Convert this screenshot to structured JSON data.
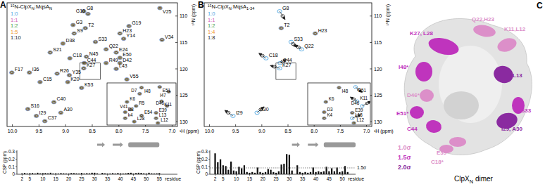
{
  "panel_labels": [
    "A",
    "B",
    "C"
  ],
  "chart_data": [
    {
      "type": "scatter",
      "title": [
        {
          "text": "¹⁵N-ClpX"
        },
        {
          "text": "N",
          "sub": true
        },
        {
          "text": ":MqsA"
        },
        {
          "text": "N",
          "sub": true
        }
      ],
      "xlabel": "¹H (ppm)",
      "ylabel": "¹⁵N (ppm)",
      "xlim": [
        10.1,
        6.9
      ],
      "ylim": [
        107.5,
        130.9
      ],
      "xticks": [
        {
          "value": 10,
          "label": "10.0"
        },
        9.5,
        {
          "value": 9,
          "label": "9.0"
        },
        8.5,
        {
          "value": 8,
          "label": "8.0"
        },
        7.5,
        {
          "value": 7,
          "label": "7.0"
        }
      ],
      "yticks": [
        110,
        115,
        120,
        125,
        130
      ],
      "series": [
        {
          "name": "1:0",
          "color": "#4aa3df"
        },
        {
          "name": "1:1",
          "color": "#d262b5"
        },
        {
          "name": "1:2",
          "color": "#3c9a3c"
        },
        {
          "name": "1:5",
          "color": "#f0962a"
        },
        {
          "name": "1:10",
          "color": "#222222"
        }
      ],
      "peaks": [
        {
          "label": "G8",
          "x": 8.66,
          "y": 109.1
        },
        {
          "label": "G10",
          "x": 8.58,
          "y": 109.6
        },
        {
          "label": "V25",
          "x": 7.23,
          "y": 108.5
        },
        {
          "label": "G3",
          "x": 8.86,
          "y": 111.7
        },
        {
          "label": "T2",
          "x": 8.63,
          "y": 112.3
        },
        {
          "label": "G19",
          "x": 7.81,
          "y": 111.9
        },
        {
          "label": "H23",
          "x": 7.98,
          "y": 113.3
        },
        {
          "label": "S9",
          "x": 8.84,
          "y": 113.3
        },
        {
          "label": "Y14",
          "x": 7.91,
          "y": 114.3
        },
        {
          "label": "V34",
          "x": 7.19,
          "y": 114.5
        },
        {
          "label": "D38",
          "x": 9.05,
          "y": 115.2
        },
        {
          "label": "S33",
          "x": 8.44,
          "y": 114.9
        },
        {
          "label": "Q22",
          "x": 8.24,
          "y": 116.3
        },
        {
          "label": "E24",
          "x": 8.05,
          "y": 116.9
        },
        {
          "label": "S21",
          "x": 9.29,
          "y": 116.9
        },
        {
          "label": "C18",
          "x": 8.92,
          "y": 118.0
        },
        {
          "label": "N45",
          "x": 8.61,
          "y": 117.7
        },
        {
          "label": "E50",
          "x": 7.98,
          "y": 117.9
        },
        {
          "label": "C44",
          "x": 8.65,
          "y": 118.9
        },
        {
          "label": "R49",
          "x": 8.24,
          "y": 118.9
        },
        {
          "label": "D42",
          "x": 7.98,
          "y": 118.9
        },
        {
          "label": "K27",
          "x": 8.66,
          "y": 119.9
        },
        {
          "label": "L43",
          "x": 8.05,
          "y": 120.0
        },
        {
          "label": "F17",
          "x": 10.01,
          "y": 120.7
        },
        {
          "label": "I36",
          "x": 9.68,
          "y": 120.7
        },
        {
          "label": "R26",
          "x": 9.16,
          "y": 120.9
        },
        {
          "label": "Y35",
          "x": 8.93,
          "y": 121.2
        },
        {
          "label": "K20",
          "x": 8.96,
          "y": 122.5
        },
        {
          "label": "C15",
          "x": 9.48,
          "y": 122.5
        },
        {
          "label": "K53",
          "x": 8.7,
          "y": 123.6
        },
        {
          "label": "V55",
          "x": 7.85,
          "y": 122.0
        },
        {
          "label": "C40",
          "x": 9.22,
          "y": 126.3
        },
        {
          "label": "S16",
          "x": 9.71,
          "y": 127.6
        },
        {
          "label": "A30",
          "x": 9.09,
          "y": 128.3
        },
        {
          "label": "I29",
          "x": 9.55,
          "y": 128.9
        },
        {
          "label": "C37",
          "x": 9.39,
          "y": 129.9
        }
      ],
      "inset": {
        "xlim": [
          8.73,
          8.35
        ],
        "ylim": [
          118.9,
          122.0
        ],
        "peaks": [
          {
            "label": "I48",
            "x": 8.54,
            "y": 119.25
          },
          {
            "label": "E51",
            "x": 8.44,
            "y": 119.2
          },
          {
            "label": "I47",
            "x": 8.39,
            "y": 119.55
          },
          {
            "label": "D7",
            "x": 8.55,
            "y": 119.7
          },
          {
            "label": "K6",
            "x": 8.62,
            "y": 120.3
          },
          {
            "label": "R5",
            "x": 8.57,
            "y": 120.6
          },
          {
            "label": "V41",
            "x": 8.6,
            "y": 120.85
          },
          {
            "label": "D3",
            "x": 8.63,
            "y": 121.05
          },
          {
            "label": "E54",
            "x": 8.54,
            "y": 121.3
          },
          {
            "label": "E39",
            "x": 8.46,
            "y": 121.1
          },
          {
            "label": "K11",
            "x": 8.43,
            "y": 120.25
          },
          {
            "label": "D46",
            "x": 8.4,
            "y": 120.6
          },
          {
            "label": "k4",
            "x": 8.63,
            "y": 121.5
          },
          {
            "label": "L28",
            "x": 8.58,
            "y": 121.75
          },
          {
            "label": "L13",
            "x": 8.46,
            "y": 121.5
          },
          {
            "label": "L12",
            "x": 8.45,
            "y": 121.85
          }
        ]
      }
    },
    {
      "type": "bar",
      "ylabel": "CSP (ppm)",
      "xlabel": "residue",
      "color": "#111111",
      "xlim": [
        0,
        62
      ],
      "ylim": [
        0,
        0.32
      ],
      "xticks": [
        2,
        5,
        10,
        15,
        20,
        25,
        30,
        35,
        40,
        45,
        50,
        55
      ],
      "yticks": [
        0,
        0.1,
        0.2,
        0.3
      ],
      "x": [
        2,
        3,
        4,
        5,
        6,
        7,
        8,
        9,
        10,
        11,
        12,
        13,
        14,
        15,
        16,
        17,
        18,
        19,
        20,
        21,
        22,
        23,
        24,
        25,
        26,
        27,
        28,
        29,
        30,
        31,
        32,
        33,
        34,
        35,
        36,
        37,
        38,
        39,
        40,
        41,
        42,
        43,
        44,
        45,
        46,
        47,
        48,
        49,
        50,
        51,
        52,
        53,
        54,
        55
      ],
      "values": [
        0.012,
        0.018,
        0.01,
        0.014,
        0.016,
        0.01,
        0.02,
        0.012,
        0.015,
        0.016,
        0.012,
        0.02,
        0.01,
        0.012,
        0.01,
        0.015,
        0.012,
        0.01,
        0.01,
        0.016,
        0.015,
        0.012,
        0.01,
        0.018,
        0.01,
        0.014,
        0.012,
        0.02,
        0.02,
        0.012,
        null,
        0.018,
        0.012,
        0.01,
        0.01,
        0.015,
        0.01,
        0.016,
        0.012,
        0.01,
        0.012,
        0.018,
        0.02,
        0.01,
        0.016,
        0.02,
        0.018,
        0.012,
        0.01,
        0.02,
        0.012,
        0.01,
        0.012,
        0.016
      ],
      "secondary_structure": [
        {
          "type": "strand",
          "start": 31,
          "end": 34
        },
        {
          "type": "strand",
          "start": 37,
          "end": 41
        },
        {
          "type": "helix",
          "start": 43,
          "end": 55
        }
      ]
    },
    {
      "type": "scatter",
      "title": [
        {
          "text": "¹⁵N-ClpX"
        },
        {
          "text": "N",
          "sub": true
        },
        {
          "text": ":MqsA"
        },
        {
          "text": "1-34",
          "sub": true
        }
      ],
      "xlabel": "¹H (ppm)",
      "ylabel": "¹⁵N (ppm)",
      "xlim": [
        10.1,
        6.9
      ],
      "ylim": [
        107.5,
        130.9
      ],
      "xticks": [
        {
          "value": 10,
          "label": "10.0"
        },
        9.5,
        {
          "value": 9,
          "label": "9.0"
        },
        8.5,
        {
          "value": 8,
          "label": "8.0"
        },
        7.5,
        {
          "value": 7,
          "label": "7.0"
        }
      ],
      "yticks": [
        110,
        115,
        120,
        125,
        130
      ],
      "series": [
        {
          "name": "1:0",
          "color": "#4aa3df"
        },
        {
          "name": "1:1",
          "color": "#d262b5"
        },
        {
          "name": "1:2",
          "color": "#3c9a3c"
        },
        {
          "name": "1:4",
          "color": "#f0962a"
        },
        {
          "name": "1:8",
          "color": "#222222"
        }
      ],
      "peaks": [
        {
          "label": "T2",
          "x": 8.63,
          "y": 112.3
        },
        {
          "label": "H23",
          "x": 7.98,
          "y": 113.3
        },
        {
          "label": "G8",
          "x": 8.66,
          "y": 109.1,
          "x_end": 8.6,
          "y_end": 110.0
        },
        {
          "label": "S33",
          "x": 8.44,
          "y": 114.9,
          "x_end": 8.4,
          "y_end": 115.3
        },
        {
          "label": "Q22",
          "x": 8.24,
          "y": 116.3,
          "x_end": 8.3,
          "y_end": 115.9
        },
        {
          "label": "C18",
          "x": 8.92,
          "y": 118.0,
          "x_end": 8.99,
          "y_end": 117.5
        },
        {
          "label": "K27",
          "x": 8.66,
          "y": 119.9,
          "x_end": 8.76,
          "y_end": 119.6
        },
        {
          "label": "C44",
          "x": 8.65,
          "y": 118.9,
          "x_end": 8.6,
          "y_end": 118.6
        },
        {
          "label": "I29",
          "x": 9.55,
          "y": 128.9,
          "x_end": 9.64,
          "y_end": 128.3
        },
        {
          "label": "A30",
          "x": 9.09,
          "y": 128.3,
          "x_end": 9.02,
          "y_end": 127.7
        }
      ],
      "inset": {
        "xlim": [
          8.73,
          8.35
        ],
        "ylim": [
          118.9,
          122.0
        ],
        "peaks": [
          {
            "label": "I48",
            "x": 8.54,
            "y": 119.25
          },
          {
            "label": "E51",
            "x": 8.44,
            "y": 119.2,
            "x_end": 8.42,
            "y_end": 119.4
          },
          {
            "label": "K6",
            "x": 8.62,
            "y": 120.3
          },
          {
            "label": "K11",
            "x": 8.43,
            "y": 120.25,
            "x_end": 8.45,
            "y_end": 120.1
          },
          {
            "label": "D46",
            "x": 8.4,
            "y": 120.6,
            "x_end": 8.37,
            "y_end": 120.4
          },
          {
            "label": "D3",
            "x": 8.63,
            "y": 121.05
          },
          {
            "label": "E39",
            "x": 8.46,
            "y": 121.1
          },
          {
            "label": "K4",
            "x": 8.63,
            "y": 121.5
          },
          {
            "label": "L13",
            "x": 8.46,
            "y": 121.5,
            "x_end": 8.43,
            "y_end": 121.35
          },
          {
            "label": "L12",
            "x": 8.45,
            "y": 121.85
          }
        ]
      }
    },
    {
      "type": "bar",
      "ylabel": "CSP (ppm)",
      "xlabel": "residue",
      "color": "#111111",
      "xlim": [
        0,
        55
      ],
      "ylim": [
        0,
        0.32
      ],
      "xticks": [
        2,
        5,
        10,
        15,
        20,
        25,
        30,
        35,
        40,
        45,
        50
      ],
      "yticks": [
        0,
        0.1,
        0.2,
        0.3
      ],
      "x": [
        2,
        3,
        4,
        5,
        6,
        7,
        8,
        9,
        10,
        11,
        12,
        13,
        14,
        15,
        16,
        17,
        18,
        19,
        20,
        21,
        22,
        23,
        24,
        25,
        26,
        27,
        28,
        29,
        30,
        31,
        32,
        33,
        34,
        35,
        36,
        37,
        38,
        39,
        40,
        41,
        42,
        43,
        44,
        45,
        46,
        47,
        48,
        49,
        50,
        51,
        52
      ],
      "values": [
        0.28,
        0.16,
        0.2,
        0.12,
        0.11,
        0.06,
        0.17,
        0.05,
        0.04,
        0.1,
        0.08,
        0.12,
        0.03,
        0.02,
        0.03,
        0.02,
        0.09,
        0.03,
        0.02,
        0.03,
        0.07,
        0.06,
        0.03,
        0.02,
        0.04,
        0.13,
        0.14,
        0.27,
        0.26,
        0.05,
        null,
        0.12,
        0.03,
        0.02,
        0.03,
        0.02,
        0.03,
        0.09,
        0.03,
        0.04,
        0.03,
        0.04,
        0.1,
        0.04,
        0.08,
        0.04,
        0.09,
        0.03,
        0.04,
        0.11,
        0.03
      ],
      "threshold": {
        "value": 0.085,
        "label": "1.5σ"
      },
      "secondary_structure": [
        {
          "type": "strand",
          "start": 31,
          "end": 34
        },
        {
          "type": "strand",
          "start": 37,
          "end": 41
        },
        {
          "type": "helix",
          "start": 43,
          "end": 55
        }
      ]
    }
  ],
  "diagram": {
    "title": [
      {
        "text": "ClpX"
      },
      {
        "text": "N",
        "sub": true
      },
      {
        "text": " dimer"
      }
    ],
    "levels": [
      {
        "value": 1.0,
        "label": "1.0σ",
        "color": "#dc8fc9"
      },
      {
        "value": 1.5,
        "label": "1.5σ",
        "color": "#bf34bd"
      },
      {
        "value": 2.0,
        "label": "2.0σ",
        "color": "#8a2aa0"
      }
    ],
    "labels": [
      {
        "text": "Q22,H23",
        "level": 1.0
      },
      {
        "text": "K11,L12",
        "level": 1.0
      },
      {
        "text": "K27, L28",
        "level": 1.5
      },
      {
        "text": "I48*",
        "level": 1.5
      },
      {
        "text": "L13",
        "level": 2.0
      },
      {
        "text": "D46*",
        "level": 1.0
      },
      {
        "text": "S33",
        "level": 1.5
      },
      {
        "text": "I29, A30",
        "level": 2.0
      },
      {
        "text": "E51*",
        "level": 1.5
      },
      {
        "text": "C44",
        "level": 1.5
      },
      {
        "text": "E39*",
        "level": 1.0
      },
      {
        "text": "C18*",
        "level": 1.0
      }
    ]
  }
}
